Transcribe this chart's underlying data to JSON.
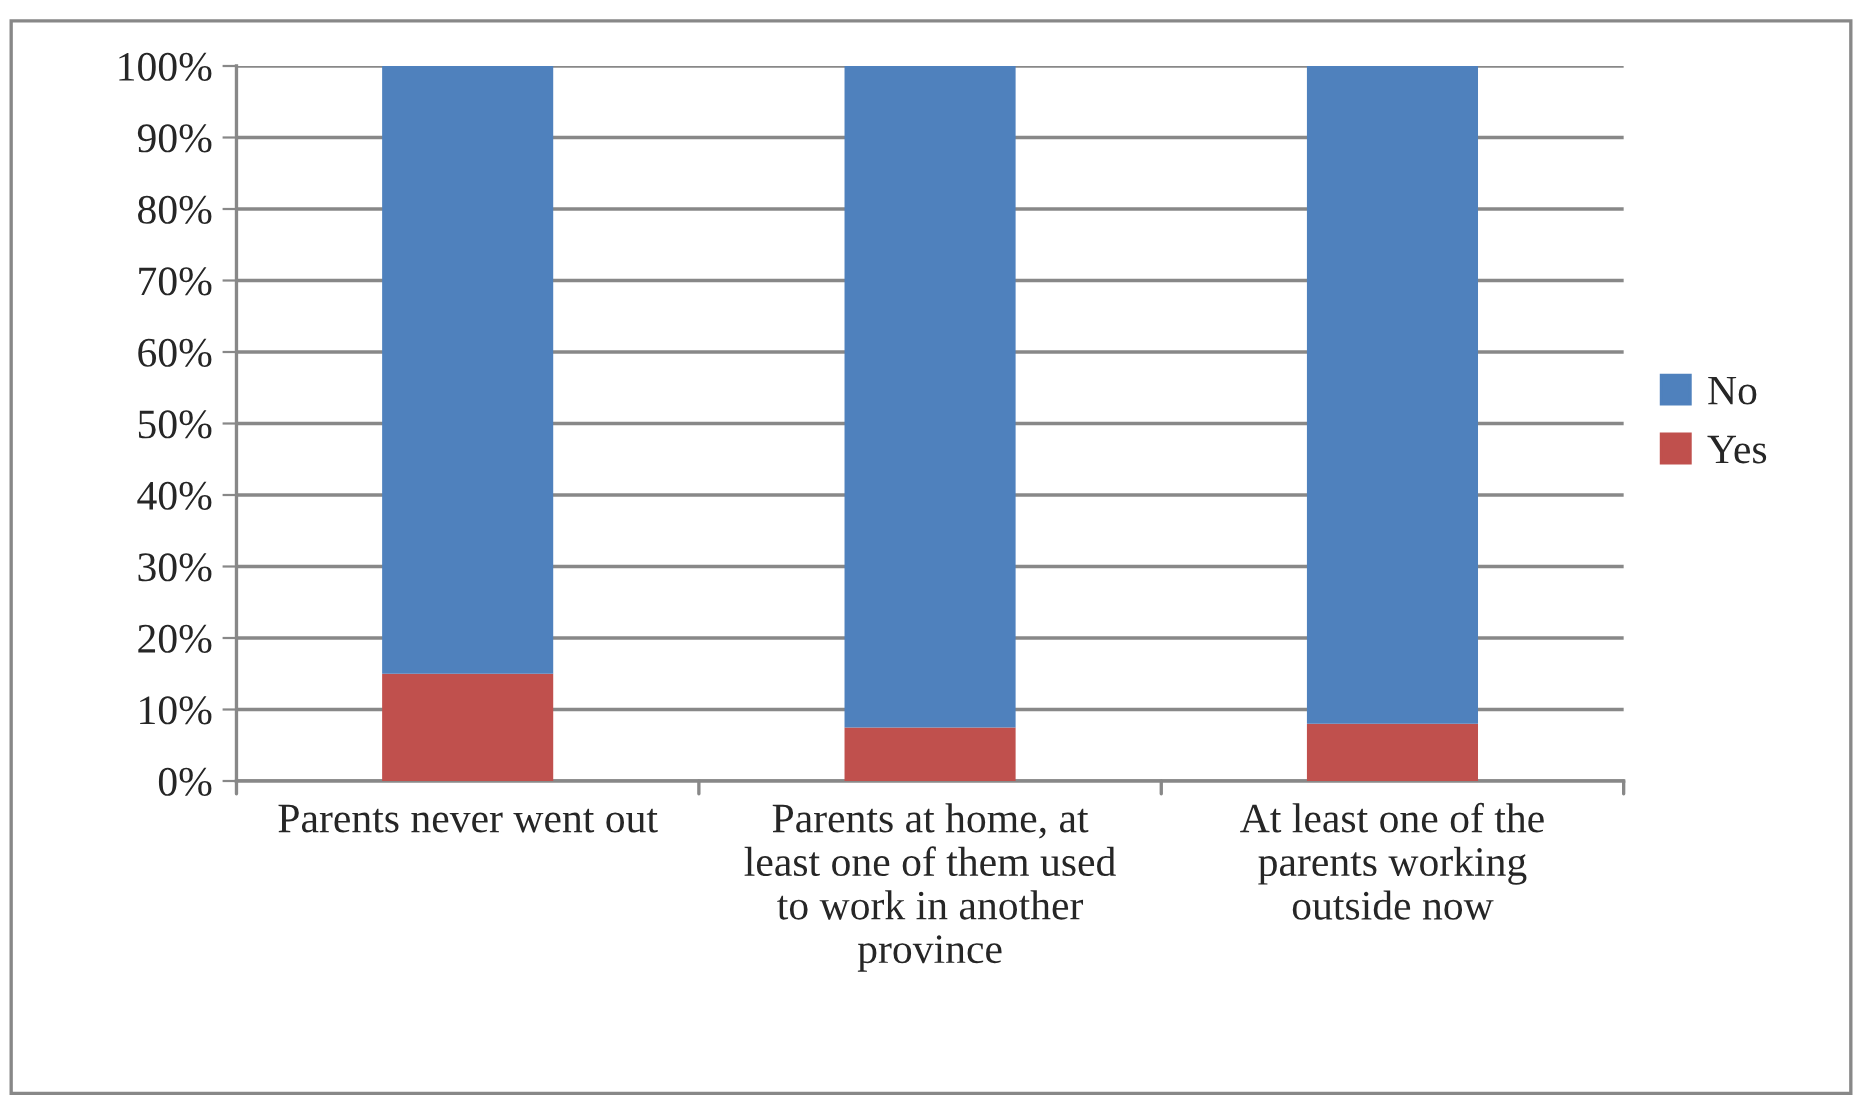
{
  "chart_data": {
    "type": "bar",
    "stacked": true,
    "categories": [
      "Parents never went out",
      "Parents at home, at least one of them used to work in another province",
      "At least one of the parents working outside now"
    ],
    "series": [
      {
        "name": "Yes",
        "color": "#c0504d",
        "values": [
          15,
          7.5,
          8
        ]
      },
      {
        "name": "No",
        "color": "#4f81bd",
        "values": [
          85,
          92.5,
          92
        ]
      }
    ],
    "ylim": [
      0,
      100
    ],
    "yticks": [
      {
        "value": 0,
        "label": "0%"
      },
      {
        "value": 10,
        "label": "10%"
      },
      {
        "value": 20,
        "label": "20%"
      },
      {
        "value": 30,
        "label": "30%"
      },
      {
        "value": 40,
        "label": "40%"
      },
      {
        "value": 50,
        "label": "50%"
      },
      {
        "value": 60,
        "label": "60%"
      },
      {
        "value": 70,
        "label": "70%"
      },
      {
        "value": 80,
        "label": "80%"
      },
      {
        "value": 90,
        "label": "90%"
      },
      {
        "value": 100,
        "label": "100%"
      }
    ],
    "grid": "y",
    "legend": "right"
  }
}
